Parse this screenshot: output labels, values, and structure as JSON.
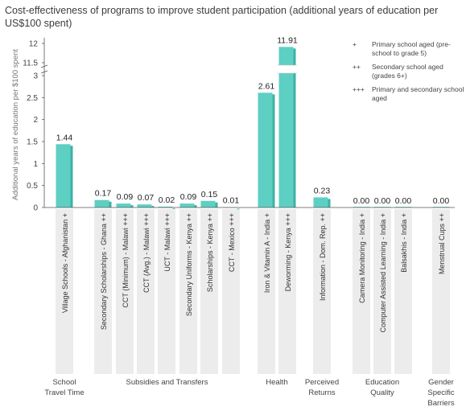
{
  "chart_data": {
    "type": "bar",
    "title": "Cost-effectiveness of programs to improve student participation (additional years of education per US$100 spent)",
    "ylabel": "Additional years of education per $100 spent",
    "ylim_lower": [
      0,
      3
    ],
    "ylim_upper": [
      11.5,
      12
    ],
    "yticks_lower": [
      "0",
      "0.5",
      "1",
      "1.5",
      "2",
      "2.5",
      "3"
    ],
    "yticks_upper": [
      "11.5",
      "12"
    ],
    "broken_axis": true,
    "bar_color": "#5ecfc3",
    "bar_side_color": "#3fb1a5",
    "label_band_color": "#ececec",
    "categories": [
      "Village Schools - Afghanistan +",
      "Secondary Scholarships - Ghana ++",
      "CCT (Minimum) - Malawi +++",
      "CCT (Avg.) - Malawi +++",
      "UCT - Malawi +++",
      "Secondary Uniforms - Kenya ++",
      "Scholarships - Kenya ++",
      "CCT - Mexico +++",
      "Iron & Vitamin A - India +",
      "Deworming - Kenya +++",
      "Information - Dom. Rep. ++",
      "Camera Monitoring - India +",
      "Computer Assisted Learning - India +",
      "Balsakhis - India +",
      "Menstrual Cups ++"
    ],
    "values": [
      1.44,
      0.17,
      0.09,
      0.07,
      0.02,
      0.09,
      0.15,
      0.01,
      2.61,
      11.91,
      0.23,
      0.0,
      0.0,
      0.0,
      0.0
    ],
    "value_labels": [
      "1.44",
      "0.17",
      "0.09",
      "0.07",
      "0.02",
      "0.09",
      "0.15",
      "0.01",
      "2.61",
      "11.91",
      "0.23",
      "0.00",
      "0.00",
      "0.00",
      "0.00"
    ],
    "groups": [
      {
        "name": "School Travel Time",
        "lines": [
          "School",
          "Travel Time"
        ],
        "indices": [
          0
        ]
      },
      {
        "name": "Subsidies and Transfers",
        "lines": [
          "Subsidies and Transfers"
        ],
        "indices": [
          1,
          2,
          3,
          4,
          5,
          6,
          7
        ]
      },
      {
        "name": "Health",
        "lines": [
          "Health"
        ],
        "indices": [
          8,
          9
        ]
      },
      {
        "name": "Perceived Returns",
        "lines": [
          "Perceived",
          "Returns"
        ],
        "indices": [
          10
        ]
      },
      {
        "name": "Education Quality",
        "lines": [
          "Education",
          "Quality"
        ],
        "indices": [
          11,
          12,
          13
        ]
      },
      {
        "name": "Gender Specific Barriers",
        "lines": [
          "Gender",
          "Specific",
          "Barriers"
        ],
        "indices": [
          14
        ]
      }
    ],
    "legend": [
      {
        "symbol": "+",
        "text": "Primary school aged (pre-school to grade 5)"
      },
      {
        "symbol": "++",
        "text": "Secondary school aged (grades 6+)"
      },
      {
        "symbol": "+++",
        "text": "Primary and secondary school aged"
      }
    ]
  }
}
